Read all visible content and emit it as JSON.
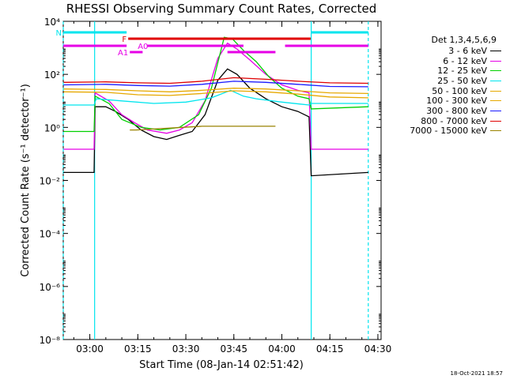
{
  "chart_data": {
    "type": "line",
    "title": "RHESSI Observing Summary Count Rates, Corrected",
    "xlabel": "Start Time (08-Jan-14 02:51:42)",
    "ylabel": "Corrected Count Rate (s⁻¹ detector⁻¹)",
    "yscale": "log",
    "xlim": [
      "02:51:42",
      "04:31:00"
    ],
    "ylim": [
      1e-08,
      10000.0
    ],
    "xticks": [
      "03:00",
      "03:15",
      "03:30",
      "03:45",
      "04:00",
      "04:15",
      "04:30"
    ],
    "ytick_labels": [
      "10⁻⁸",
      "10⁻⁶",
      "10⁻⁴",
      "10⁻²",
      "10⁰",
      "10²",
      "10⁴"
    ],
    "yticks": [
      -8,
      -6,
      -4,
      -2,
      0,
      2,
      4
    ],
    "legend_title": "Det 1,3,4,5,6,9",
    "legend_position": "right",
    "night_intervals": [
      [
        "02:51:42",
        "03:01:30"
      ],
      [
        "04:09:10",
        "04:27:00"
      ]
    ],
    "flags": [
      {
        "label": "N",
        "color": "#00e5ee",
        "intervals": [
          [
            "02:51:42",
            "03:11:30"
          ],
          [
            "04:09:10",
            "04:27:00"
          ]
        ]
      },
      {
        "label": "F",
        "color": "#e00000",
        "intervals": [
          [
            "03:12:00",
            "04:09:00"
          ]
        ]
      },
      {
        "label": "A0",
        "color": "#e600e6",
        "intervals": [
          [
            "02:51:42",
            "03:11:30"
          ],
          [
            "03:18:00",
            "03:48:00"
          ],
          [
            "04:01:00",
            "04:27:00"
          ]
        ]
      },
      {
        "label": "A1",
        "color": "#e600e6",
        "intervals": [
          [
            "03:12:30",
            "03:16:30"
          ],
          [
            "03:43:00",
            "03:58:00"
          ]
        ]
      }
    ],
    "series": [
      {
        "name": "3 - 6 keV",
        "color": "#000000",
        "points": [
          [
            "02:51:50",
            0.02
          ],
          [
            "03:01:20",
            0.02
          ],
          [
            "03:01:40",
            6
          ],
          [
            "03:05:00",
            6
          ],
          [
            "03:08:00",
            4
          ],
          [
            "03:12:00",
            2
          ],
          [
            "03:16:00",
            0.8
          ],
          [
            "03:20:00",
            0.45
          ],
          [
            "03:24:00",
            0.35
          ],
          [
            "03:28:00",
            0.5
          ],
          [
            "03:32:00",
            0.7
          ],
          [
            "03:36:00",
            3
          ],
          [
            "03:40:00",
            60
          ],
          [
            "03:43:00",
            160
          ],
          [
            "03:46:00",
            100
          ],
          [
            "03:50:00",
            30
          ],
          [
            "03:55:00",
            12
          ],
          [
            "04:00:00",
            6
          ],
          [
            "04:05:00",
            4
          ],
          [
            "04:08:30",
            2.5
          ],
          [
            "04:09:10",
            0.015
          ],
          [
            "04:27:00",
            0.02
          ]
        ]
      },
      {
        "name": "6 - 12 keV",
        "color": "#e600e6",
        "points": [
          [
            "02:51:50",
            0.15
          ],
          [
            "03:01:20",
            0.15
          ],
          [
            "03:01:40",
            20
          ],
          [
            "03:06:00",
            10
          ],
          [
            "03:10:00",
            3
          ],
          [
            "03:14:00",
            1.5
          ],
          [
            "03:18:00",
            0.8
          ],
          [
            "03:24:00",
            0.6
          ],
          [
            "03:28:00",
            0.8
          ],
          [
            "03:32:00",
            1.5
          ],
          [
            "03:36:00",
            10
          ],
          [
            "03:40:00",
            400
          ],
          [
            "03:43:00",
            1500
          ],
          [
            "03:46:00",
            900
          ],
          [
            "03:50:00",
            350
          ],
          [
            "03:55:00",
            100
          ],
          [
            "04:00:00",
            40
          ],
          [
            "04:05:00",
            25
          ],
          [
            "04:08:30",
            20
          ],
          [
            "04:09:10",
            0.15
          ],
          [
            "04:27:00",
            0.15
          ]
        ]
      },
      {
        "name": "12 - 25 keV",
        "color": "#00d000",
        "points": [
          [
            "02:51:50",
            0.7
          ],
          [
            "03:01:20",
            0.7
          ],
          [
            "03:01:40",
            15
          ],
          [
            "03:06:00",
            8
          ],
          [
            "03:10:00",
            2
          ],
          [
            "03:16:00",
            1
          ],
          [
            "03:22:00",
            0.8
          ],
          [
            "03:28:00",
            1
          ],
          [
            "03:34:00",
            3
          ],
          [
            "03:38:00",
            30
          ],
          [
            "03:42:00",
            2500
          ],
          [
            "03:44:30",
            2200
          ],
          [
            "03:48:00",
            800
          ],
          [
            "03:52:00",
            300
          ],
          [
            "03:56:00",
            80
          ],
          [
            "04:00:00",
            30
          ],
          [
            "04:05:00",
            15
          ],
          [
            "04:08:30",
            12
          ],
          [
            "04:09:10",
            5
          ],
          [
            "04:27:00",
            6
          ]
        ]
      },
      {
        "name": "25 - 50 keV",
        "color": "#00e5ee",
        "points": [
          [
            "02:51:50",
            7
          ],
          [
            "03:01:20",
            7
          ],
          [
            "03:02:00",
            12
          ],
          [
            "03:10:00",
            10
          ],
          [
            "03:20:00",
            8
          ],
          [
            "03:30:00",
            9
          ],
          [
            "03:38:00",
            13
          ],
          [
            "03:44:00",
            25
          ],
          [
            "03:48:00",
            15
          ],
          [
            "03:52:00",
            12
          ],
          [
            "04:00:00",
            9
          ],
          [
            "04:08:30",
            7
          ],
          [
            "04:09:10",
            8
          ],
          [
            "04:27:00",
            8
          ]
        ]
      },
      {
        "name": "50 - 100 keV",
        "color": "#e6a800",
        "points": [
          [
            "02:51:50",
            22
          ],
          [
            "03:05:00",
            21
          ],
          [
            "03:15:00",
            17
          ],
          [
            "03:25:00",
            16
          ],
          [
            "03:35:00",
            19
          ],
          [
            "03:45:00",
            24
          ],
          [
            "03:55:00",
            22
          ],
          [
            "04:05:00",
            18
          ],
          [
            "04:15:00",
            14
          ],
          [
            "04:27:00",
            13
          ]
        ]
      },
      {
        "name": "100 - 300 keV",
        "color": "#e6a800",
        "points": [
          [
            "02:51:50",
            28
          ],
          [
            "03:05:00",
            27
          ],
          [
            "03:15:00",
            24
          ],
          [
            "03:25:00",
            22
          ],
          [
            "03:35:00",
            25
          ],
          [
            "03:45:00",
            30
          ],
          [
            "03:55:00",
            28
          ],
          [
            "04:05:00",
            24
          ],
          [
            "04:15:00",
            20
          ],
          [
            "04:27:00",
            19
          ]
        ]
      },
      {
        "name": "300 - 800 keV",
        "color": "#1a1aff",
        "points": [
          [
            "02:51:50",
            40
          ],
          [
            "03:05:00",
            42
          ],
          [
            "03:15:00",
            38
          ],
          [
            "03:25:00",
            36
          ],
          [
            "03:35:00",
            42
          ],
          [
            "03:45:00",
            55
          ],
          [
            "03:55:00",
            50
          ],
          [
            "04:05:00",
            42
          ],
          [
            "04:15:00",
            35
          ],
          [
            "04:27:00",
            34
          ]
        ]
      },
      {
        "name": "800 - 7000 keV",
        "color": "#e00000",
        "points": [
          [
            "02:51:50",
            50
          ],
          [
            "03:05:00",
            52
          ],
          [
            "03:15:00",
            48
          ],
          [
            "03:25:00",
            46
          ],
          [
            "03:35:00",
            55
          ],
          [
            "03:45:00",
            75
          ],
          [
            "03:55:00",
            65
          ],
          [
            "04:05:00",
            55
          ],
          [
            "04:15:00",
            48
          ],
          [
            "04:27:00",
            46
          ]
        ]
      },
      {
        "name": "7000 - 15000 keV",
        "color": "#998200",
        "points": [
          [
            "03:12:30",
            0.8
          ],
          [
            "03:14:30",
            0.8
          ],
          [
            "03:35:00",
            1.1
          ],
          [
            "03:58:00",
            1.1
          ]
        ]
      }
    ]
  },
  "footer": {
    "generated": "18-Oct-2021 18:57"
  }
}
